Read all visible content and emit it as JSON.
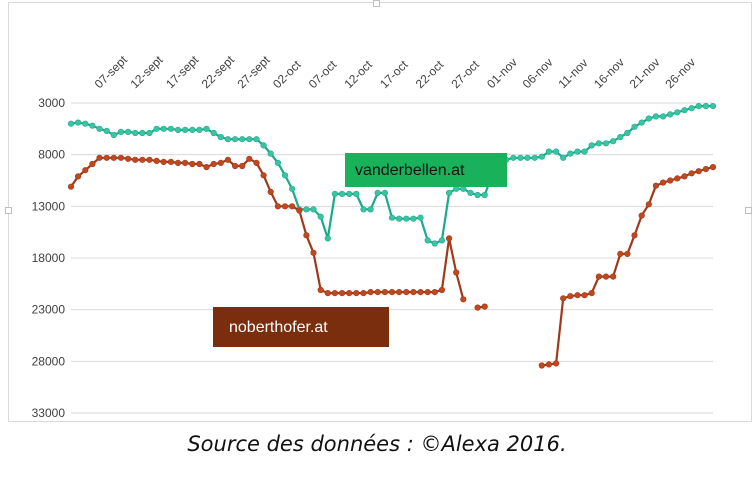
{
  "caption": "Source des données : ©Alexa 2016.",
  "colors": {
    "vanderbellen": "#1aab8a",
    "noberthofer": "#a0391a",
    "vanderbellen_label_bg": "#19b25a",
    "noberthofer_label_bg": "#7a2e0e",
    "grid": "#d9d9d9",
    "marker_vdb": "#3bc4a4",
    "marker_nh": "#c0481e"
  },
  "chart_data": {
    "type": "line",
    "title": "",
    "xlabel": "",
    "ylabel": "",
    "y_reversed": true,
    "ylim": [
      3000,
      33000
    ],
    "yticks": [
      "3000",
      "8000",
      "13000",
      "18000",
      "23000",
      "28000",
      "33000"
    ],
    "xticks": [
      "07-sept",
      "12-sept",
      "17-sept",
      "22-sept",
      "27-sept",
      "02-oct",
      "07-oct",
      "12-oct",
      "17-oct",
      "22-oct",
      "27-oct",
      "01-nov",
      "06-nov",
      "11-nov",
      "16-nov",
      "21-nov",
      "26-nov"
    ],
    "start_date": "2016-09-03",
    "grid": true,
    "series": [
      {
        "name": "vanderbellen.at",
        "values": [
          5000,
          4900,
          5000,
          5200,
          5500,
          5700,
          6100,
          5800,
          5800,
          5900,
          5900,
          5900,
          5500,
          5500,
          5500,
          5600,
          5600,
          5600,
          5600,
          5500,
          5900,
          6300,
          6500,
          6500,
          6500,
          6500,
          6500,
          7100,
          7900,
          8800,
          10000,
          11300,
          13300,
          13300,
          13300,
          14000,
          16100,
          11800,
          11800,
          11800,
          11800,
          13300,
          13300,
          11700,
          11700,
          14100,
          14200,
          14200,
          14200,
          14100,
          16300,
          16600,
          16300,
          11700,
          11300,
          11300,
          11700,
          11900,
          11900,
          10000,
          9100,
          8500,
          8300,
          8300,
          8300,
          8300,
          8200,
          7700,
          7700,
          8300,
          7900,
          7700,
          7700,
          7100,
          6900,
          6900,
          6700,
          6300,
          5900,
          5300,
          4900,
          4500,
          4300,
          4300,
          4100,
          3900,
          3700,
          3500,
          3300,
          3300,
          3300
        ]
      },
      {
        "name": "noberthofer.at",
        "values": [
          11100,
          10100,
          9500,
          8900,
          8300,
          8300,
          8300,
          8300,
          8400,
          8500,
          8500,
          8500,
          8600,
          8700,
          8700,
          8800,
          8800,
          8900,
          8900,
          9200,
          8900,
          8800,
          8500,
          9100,
          9100,
          8400,
          8800,
          10000,
          11600,
          13000,
          13000,
          13000,
          13400,
          15800,
          17500,
          21100,
          21400,
          21400,
          21400,
          21400,
          21400,
          21400,
          21300,
          21300,
          21300,
          21300,
          21300,
          21300,
          21300,
          21300,
          21300,
          21300,
          21100,
          16100,
          19400,
          22000,
          null,
          22800,
          22700,
          null,
          null,
          null,
          null,
          null,
          null,
          null,
          28400,
          28300,
          28200,
          21900,
          21700,
          21600,
          21600,
          21400,
          19800,
          19800,
          19800,
          17600,
          17600,
          15800,
          13900,
          12800,
          11000,
          10700,
          10500,
          10300,
          10100,
          9800,
          9600,
          9400,
          9200
        ]
      }
    ]
  },
  "legend_labels": {
    "vanderbellen": "vanderbellen.at",
    "noberthofer": "noberthofer.at"
  }
}
